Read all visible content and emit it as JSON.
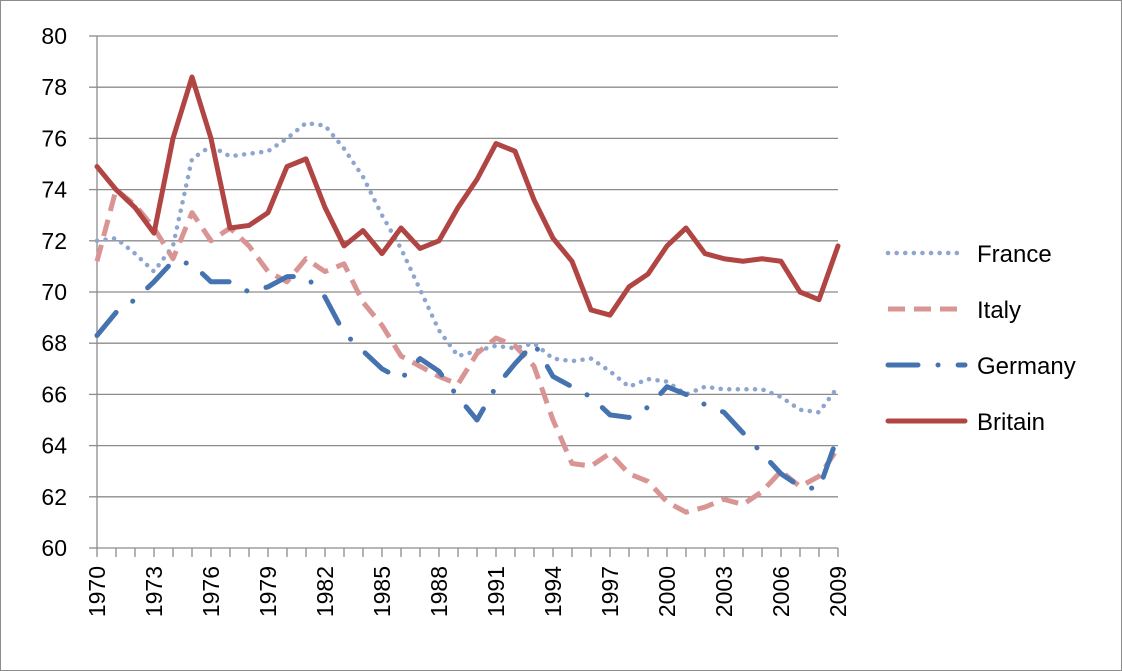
{
  "chart_data": {
    "type": "line",
    "title": "",
    "xlabel": "",
    "ylabel": "",
    "ylim": [
      60,
      80
    ],
    "yticks": [
      "60",
      "62",
      "64",
      "66",
      "68",
      "70",
      "72",
      "74",
      "76",
      "78",
      "80"
    ],
    "xlim": [
      1970,
      2009
    ],
    "xticks": [
      "1970",
      "1973",
      "1976",
      "1979",
      "1982",
      "1985",
      "1988",
      "1991",
      "1994",
      "1997",
      "2000",
      "2003",
      "2006",
      "2009"
    ],
    "grid": "horizontal",
    "legend_position": "right",
    "x": [
      1970,
      1971,
      1972,
      1973,
      1974,
      1975,
      1976,
      1977,
      1978,
      1979,
      1980,
      1981,
      1982,
      1983,
      1984,
      1985,
      1986,
      1987,
      1988,
      1989,
      1990,
      1991,
      1992,
      1993,
      1994,
      1995,
      1996,
      1997,
      1998,
      1999,
      2000,
      2001,
      2002,
      2003,
      2004,
      2005,
      2006,
      2007,
      2008,
      2009
    ],
    "series": [
      {
        "name": "France",
        "color": "#8ea6cf",
        "style": "dotted",
        "values": [
          72.0,
          72.1,
          71.5,
          70.8,
          71.8,
          75.2,
          75.7,
          75.3,
          75.4,
          75.5,
          76.0,
          76.6,
          76.5,
          75.6,
          74.5,
          73.0,
          71.7,
          70.1,
          68.5,
          67.5,
          67.7,
          67.9,
          67.8,
          68.0,
          67.4,
          67.3,
          67.4,
          66.9,
          66.3,
          66.6,
          66.5,
          66.0,
          66.3,
          66.2,
          66.2,
          66.2,
          65.9,
          65.4,
          65.3,
          66.3
        ]
      },
      {
        "name": "Italy",
        "color": "#d99594",
        "style": "dashed",
        "values": [
          71.2,
          74.0,
          73.4,
          72.5,
          71.3,
          73.1,
          72.0,
          72.5,
          71.8,
          70.8,
          70.4,
          71.3,
          70.8,
          71.1,
          69.6,
          68.7,
          67.5,
          67.1,
          66.7,
          66.4,
          67.6,
          68.2,
          67.9,
          67.1,
          65.0,
          63.3,
          63.2,
          63.7,
          62.9,
          62.6,
          61.8,
          61.4,
          61.6,
          61.9,
          61.7,
          62.2,
          63.0,
          62.4,
          62.8,
          63.9
        ]
      },
      {
        "name": "Germany",
        "color": "#4573b0",
        "style": "long-dash-dot",
        "values": [
          68.3,
          69.2,
          69.7,
          70.4,
          71.2,
          71.1,
          70.4,
          70.4,
          70.0,
          70.2,
          70.6,
          70.6,
          69.8,
          68.4,
          67.7,
          67.0,
          66.6,
          67.4,
          66.9,
          65.9,
          65.0,
          66.3,
          67.2,
          68.0,
          66.7,
          66.3,
          65.9,
          65.2,
          65.1,
          65.5,
          66.3,
          66.0,
          65.6,
          65.3,
          64.5,
          63.7,
          62.9,
          62.4,
          62.3,
          64.4
        ]
      },
      {
        "name": "Britain",
        "color": "#b04543",
        "style": "solid",
        "values": [
          74.9,
          74.0,
          73.3,
          72.3,
          76.0,
          78.4,
          76.0,
          72.5,
          72.6,
          73.1,
          74.9,
          75.2,
          73.3,
          71.8,
          72.4,
          71.5,
          72.5,
          71.7,
          72.0,
          73.3,
          74.4,
          75.8,
          75.5,
          73.6,
          72.1,
          71.2,
          69.3,
          69.1,
          70.2,
          70.7,
          71.8,
          72.5,
          71.5,
          71.3,
          71.2,
          71.3,
          71.2,
          70.0,
          69.7,
          71.8
        ]
      }
    ]
  }
}
